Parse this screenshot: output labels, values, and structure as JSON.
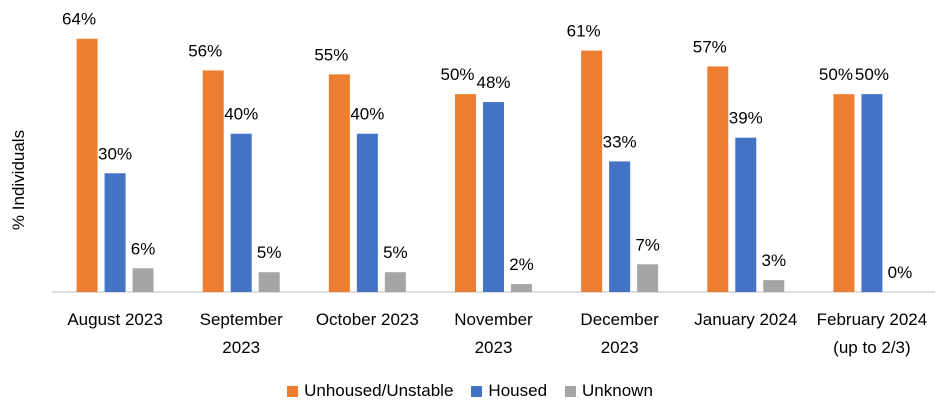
{
  "chart_data": {
    "type": "bar",
    "y_label": "% Individuals",
    "categories": [
      "August 2023",
      "September 2023",
      "October 2023",
      "November 2023",
      "December 2023",
      "January 2024",
      "February 2024 (up to 2/3)"
    ],
    "series": [
      {
        "name": "Unhoused/Unstable",
        "color": "#ed7d31",
        "values": [
          64,
          56,
          55,
          50,
          61,
          57,
          50
        ],
        "value_labels": [
          "64%",
          "56%",
          "55%",
          "50%",
          "61%",
          "57%",
          "50%"
        ]
      },
      {
        "name": "Housed",
        "color": "#4472c4",
        "values": [
          30,
          40,
          40,
          48,
          33,
          39,
          50
        ],
        "value_labels": [
          "30%",
          "40%",
          "40%",
          "48%",
          "33%",
          "39%",
          "50%"
        ]
      },
      {
        "name": "Unknown",
        "color": "#a5a5a5",
        "values": [
          6,
          5,
          5,
          2,
          7,
          3,
          0
        ],
        "value_labels": [
          "6%",
          "5%",
          "5%",
          "2%",
          "7%",
          "3%",
          "0%"
        ]
      }
    ],
    "ylim": [
      0,
      70
    ],
    "legend": "bottom"
  }
}
